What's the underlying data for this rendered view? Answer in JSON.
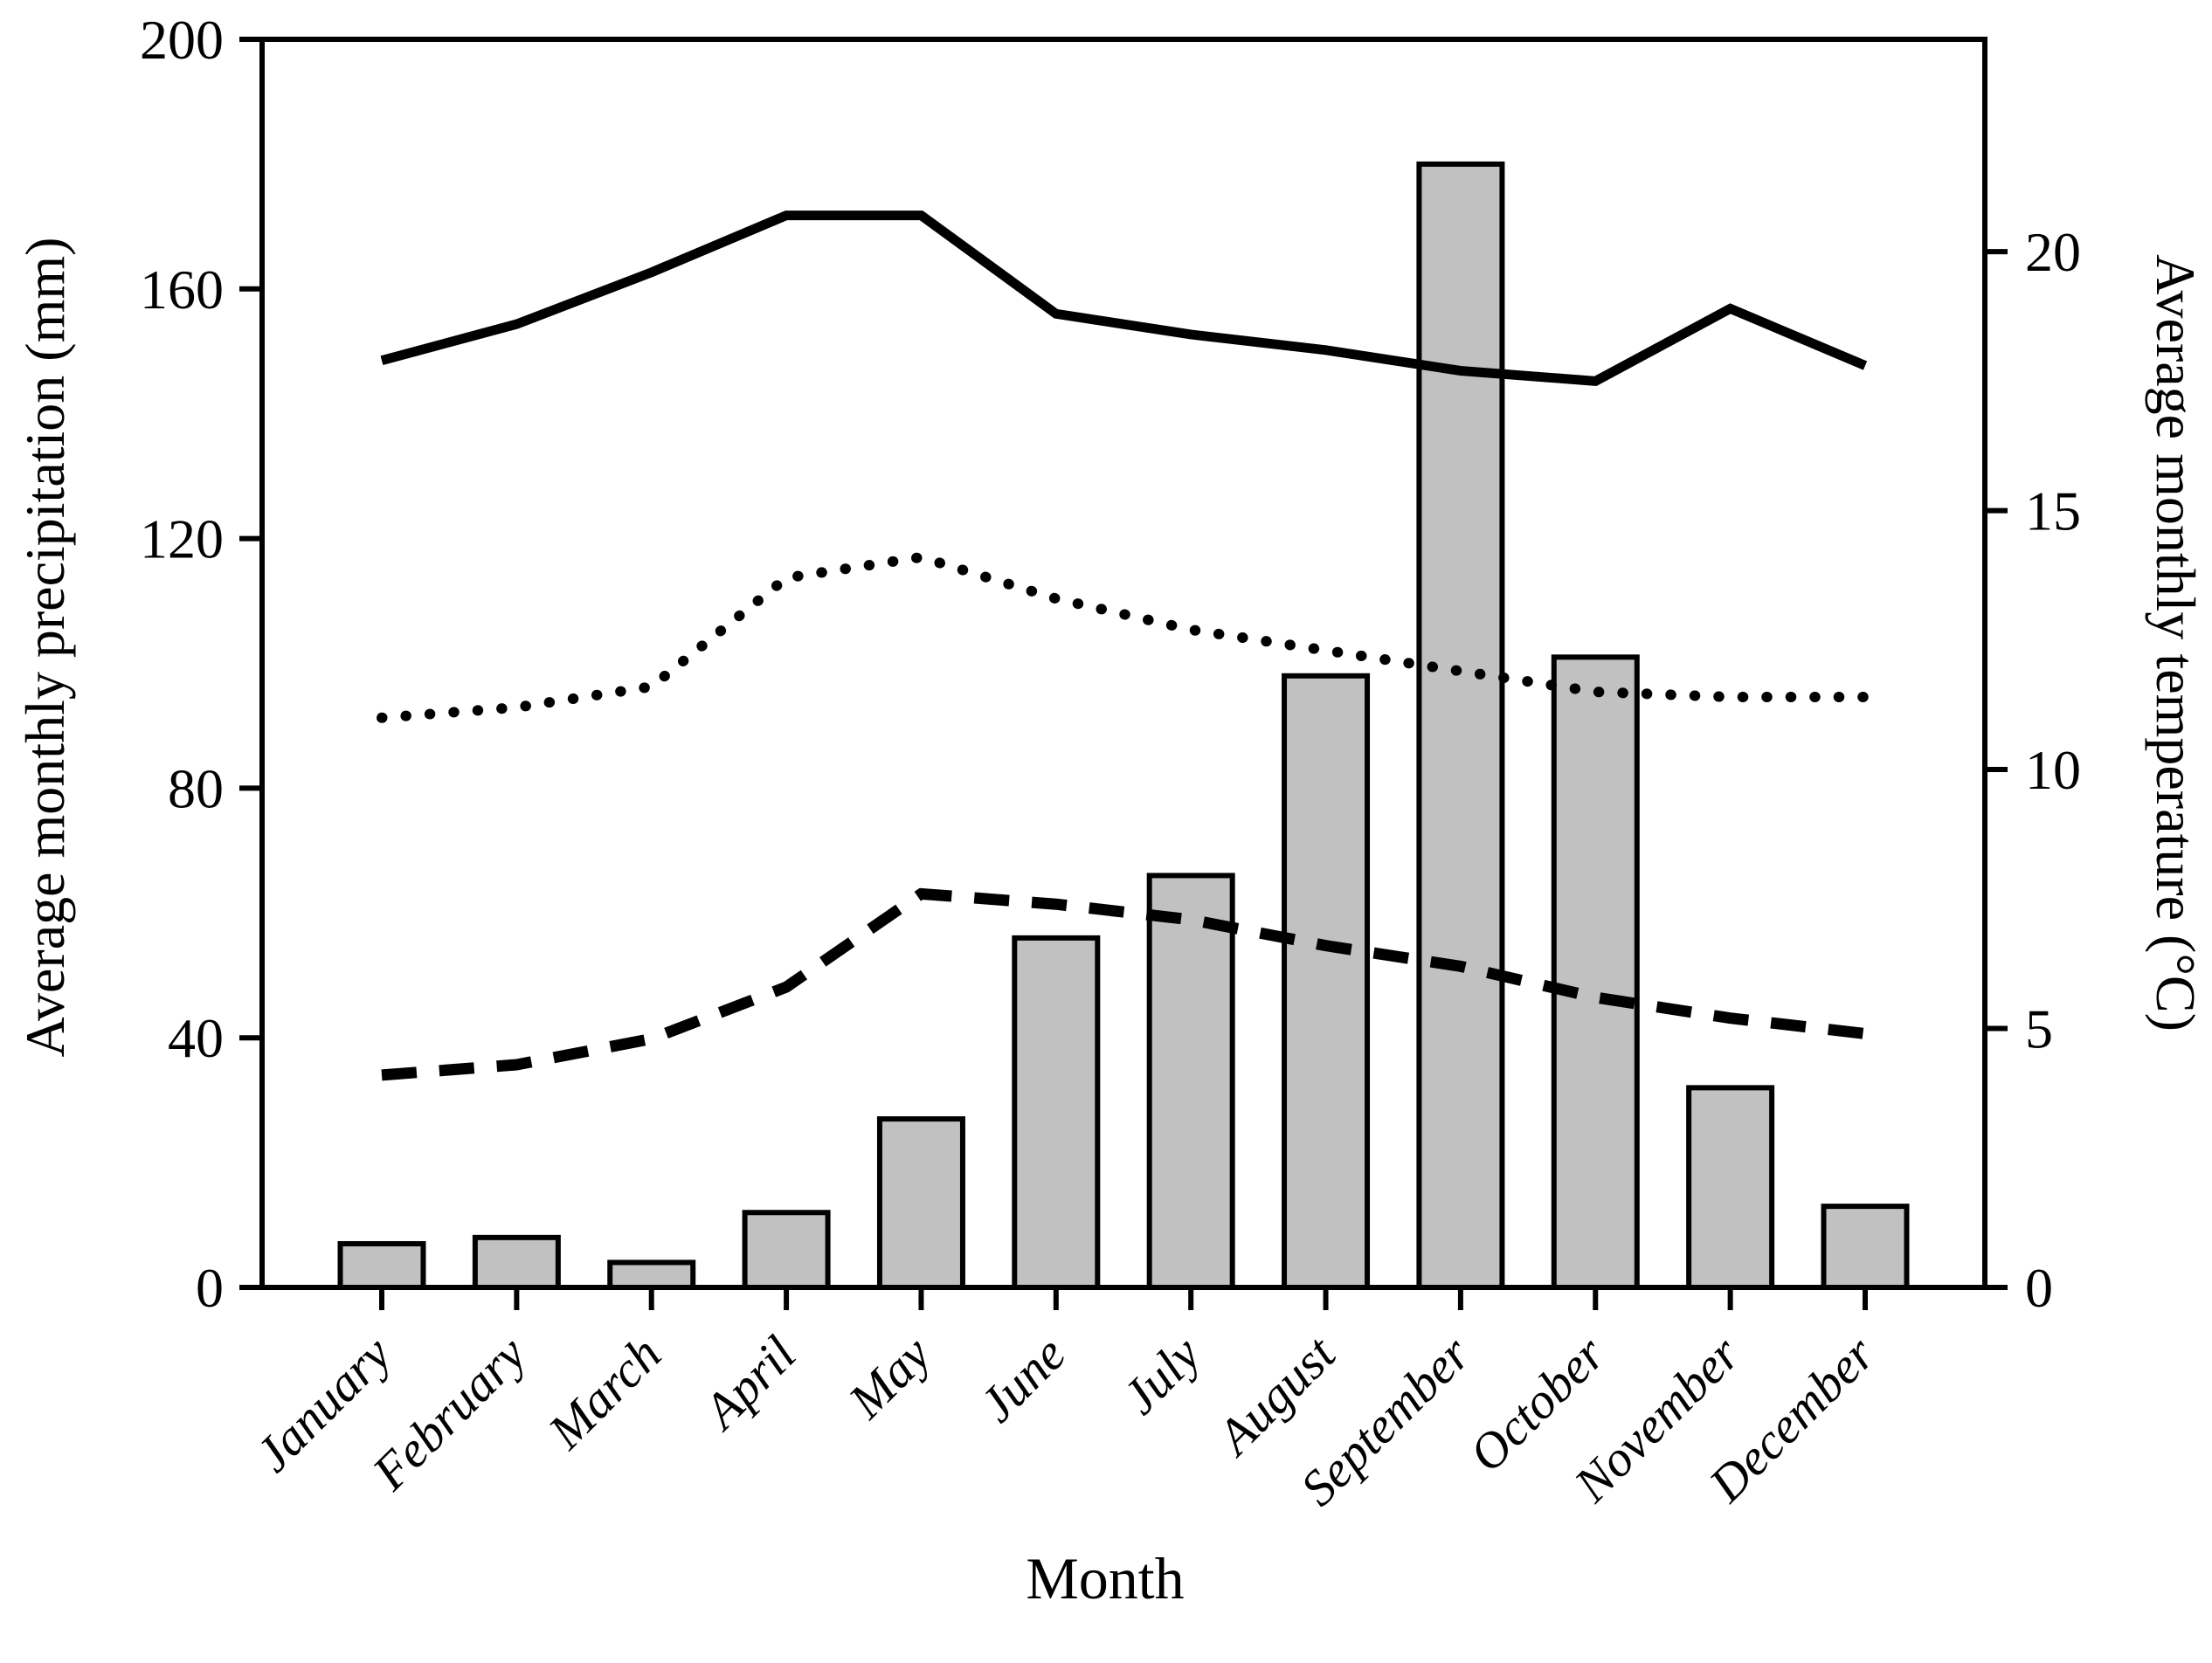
{
  "figure": {
    "x_axis_title": "Month",
    "left_axis_title": "Average monthly precipitation (mm)",
    "right_axis_title": "Average monthly temperature (°C)"
  },
  "chart_data": {
    "type": "bar",
    "subtype": "combo-bar-and-lines",
    "categories": [
      "January",
      "February",
      "March",
      "April",
      "May",
      "June",
      "July",
      "August",
      "September",
      "October",
      "November",
      "December"
    ],
    "series": [
      {
        "name": "precipitation-bars",
        "type": "bar",
        "axis": "left",
        "unit": "mm",
        "fill": "#c1c1c1",
        "stroke": "#000000",
        "values": [
          7,
          8,
          4,
          12,
          27,
          56,
          66,
          98,
          180,
          101,
          32,
          13
        ]
      },
      {
        "name": "temperature-solid-line",
        "type": "line",
        "style": "solid",
        "axis": "right",
        "unit": "°C",
        "color": "#000000",
        "values": [
          17.9,
          18.6,
          19.6,
          20.7,
          20.7,
          18.8,
          18.4,
          18.1,
          17.7,
          17.5,
          18.9,
          17.8
        ]
      },
      {
        "name": "temperature-dotted-line",
        "type": "line",
        "style": "dotted",
        "axis": "right",
        "unit": "°C",
        "color": "#000000",
        "values": [
          11.0,
          11.2,
          11.6,
          13.7,
          14.1,
          13.3,
          12.7,
          12.3,
          11.9,
          11.5,
          11.4,
          11.4
        ]
      },
      {
        "name": "temperature-dashed-line",
        "type": "line",
        "style": "dashed",
        "axis": "right",
        "unit": "°C",
        "color": "#000000",
        "values": [
          4.1,
          4.3,
          4.8,
          5.8,
          7.6,
          7.4,
          7.1,
          6.6,
          6.2,
          5.6,
          5.2,
          4.9
        ]
      }
    ],
    "xlabel": "Month",
    "left_axis": {
      "label": "Average monthly precipitation (mm)",
      "ticks": [
        0,
        40,
        80,
        120,
        160,
        200
      ],
      "range": [
        0,
        200
      ]
    },
    "right_axis": {
      "label": "Average monthly temperature (°C)",
      "ticks": [
        0,
        5,
        10,
        15,
        20
      ],
      "range": [
        0,
        24.1
      ]
    },
    "grid": false,
    "legend": false,
    "frame": true
  }
}
